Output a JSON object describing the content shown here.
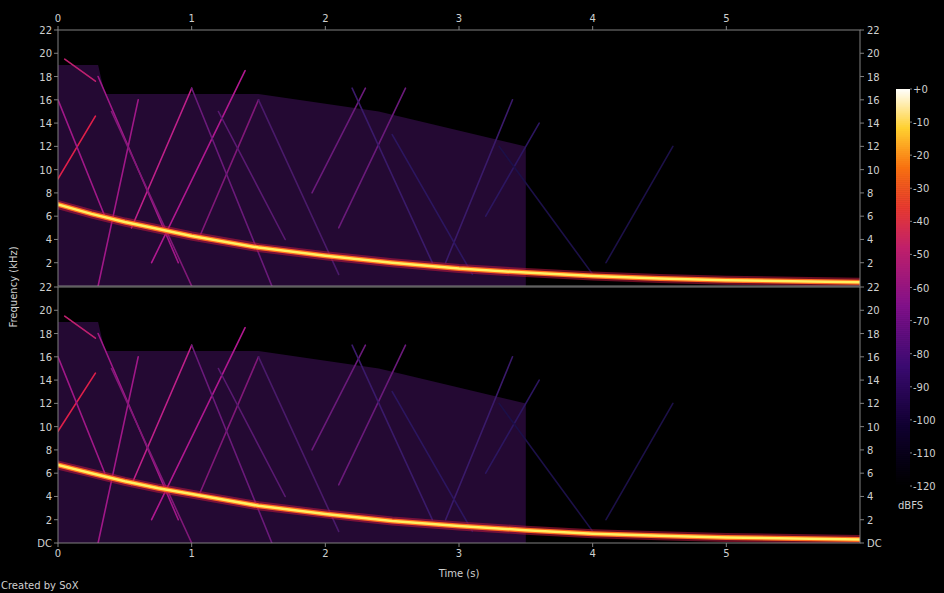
{
  "chart_data": [
    {
      "type": "spectrogram",
      "xlim": [
        0,
        6
      ],
      "xticks": [
        0,
        1,
        2,
        3,
        4,
        5
      ],
      "ylim": [
        0,
        22
      ],
      "yticks": [
        2,
        4,
        6,
        8,
        10,
        12,
        14,
        16,
        18,
        20,
        22
      ],
      "grid": false,
      "ylabel": "Frequency (kHz)",
      "colorbar": {
        "range": [
          -120,
          0
        ],
        "label": "dBFS",
        "ticks": [
          {
            "value": 0,
            "label": "+0"
          },
          -10,
          -20,
          -30,
          -40,
          -50,
          -60,
          -70,
          -80,
          -90,
          -100,
          -110,
          -120
        ]
      },
      "series": [
        {
          "type": "area",
          "color": "#2a0b3c",
          "x": [
            0,
            0.3,
            0.35,
            1.5,
            2.4,
            3.5
          ],
          "values": [
            19,
            19,
            16.5,
            16.5,
            15,
            12
          ]
        },
        {
          "type": "line",
          "color": "#e0204a",
          "x": [
            0,
            0.28
          ],
          "values": [
            9.2,
            14.6
          ]
        },
        {
          "type": "line",
          "color": "#c0208a",
          "x": [
            0.55,
            1.0
          ],
          "values": [
            5,
            17
          ]
        },
        {
          "type": "line",
          "color": "#b01890",
          "x": [
            0.7,
            1.4
          ],
          "values": [
            2,
            18.5
          ]
        },
        {
          "type": "line",
          "color": "#a01888",
          "x": [
            0.3,
            0.6
          ],
          "values": [
            0,
            16
          ]
        },
        {
          "type": "line",
          "color": "#801878",
          "x": [
            1.05,
            1.5
          ],
          "values": [
            4,
            16
          ]
        },
        {
          "type": "line",
          "color": "#6a1a7a",
          "x": [
            1.9,
            2.3
          ],
          "values": [
            8,
            17
          ]
        },
        {
          "type": "line",
          "color": "#6a1a7a",
          "x": [
            2.1,
            2.6
          ],
          "values": [
            5,
            17
          ]
        },
        {
          "type": "line",
          "color": "#3a1a6a",
          "x": [
            2.9,
            3.4
          ],
          "values": [
            2,
            16
          ]
        },
        {
          "type": "line",
          "color": "#2c1660",
          "x": [
            3.2,
            3.6
          ],
          "values": [
            6,
            14
          ]
        },
        {
          "type": "line",
          "color": "#1c1048",
          "x": [
            4.1,
            4.6
          ],
          "values": [
            2,
            12
          ]
        },
        {
          "type": "line",
          "color": "#c02070",
          "x": [
            0.05,
            0.28
          ],
          "values": [
            19.5,
            17.6
          ]
        },
        {
          "type": "line",
          "color": "#a01888",
          "x": [
            0.3,
            0.9
          ],
          "values": [
            18,
            2
          ]
        },
        {
          "type": "line",
          "color": "#801878",
          "x": [
            0.4,
            1.0
          ],
          "values": [
            15,
            0
          ]
        },
        {
          "type": "line",
          "color": "#6a1a7a",
          "x": [
            1.0,
            1.6
          ],
          "values": [
            17,
            0
          ]
        },
        {
          "type": "line",
          "color": "#4a1a6a",
          "x": [
            1.5,
            2.1
          ],
          "values": [
            16,
            1
          ]
        },
        {
          "type": "line",
          "color": "#3a1a6a",
          "x": [
            2.2,
            2.8
          ],
          "values": [
            17,
            2
          ]
        },
        {
          "type": "line",
          "color": "#a01888",
          "x": [
            0,
            0.35
          ],
          "values": [
            16,
            6
          ]
        },
        {
          "type": "line",
          "color": "#2c1660",
          "x": [
            2.5,
            3.1
          ],
          "values": [
            13,
            1
          ]
        },
        {
          "type": "line",
          "color": "#1c1048",
          "x": [
            3.3,
            4.0
          ],
          "values": [
            12,
            1
          ]
        },
        {
          "type": "line",
          "color": "#5a1a72",
          "x": [
            1.2,
            1.7
          ],
          "values": [
            15,
            4
          ]
        },
        {
          "type": "line",
          "color": "#fff060",
          "x": [
            0,
            0.25,
            0.5,
            0.75,
            1,
            1.5,
            2,
            2.5,
            3,
            3.5,
            4,
            4.5,
            5,
            5.5,
            6
          ],
          "values": [
            7.0,
            6.2,
            5.5,
            4.9,
            4.3,
            3.3,
            2.6,
            2.0,
            1.5,
            1.15,
            0.85,
            0.65,
            0.5,
            0.4,
            0.32
          ]
        }
      ]
    },
    {
      "type": "spectrogram",
      "xlim": [
        0,
        6
      ],
      "xticks": [
        0,
        1,
        2,
        3,
        4,
        5
      ],
      "ylim": [
        0,
        22
      ],
      "yticks": [
        {
          "value": 0,
          "label": "DC"
        },
        2,
        4,
        6,
        8,
        10,
        12,
        14,
        16,
        18,
        20,
        22
      ],
      "grid": false,
      "xlabel": "Time (s)",
      "annotation": "Created by SoX",
      "series": [
        {
          "type": "area",
          "color": "#2a0b3c",
          "x": [
            0,
            0.3,
            0.35,
            1.5,
            2.4,
            3.5
          ],
          "values": [
            19,
            19,
            16.5,
            16.5,
            15,
            12
          ]
        },
        {
          "type": "line",
          "color": "#e0204a",
          "x": [
            0,
            0.28
          ],
          "values": [
            9.6,
            14.6
          ]
        },
        {
          "type": "line",
          "color": "#c0208a",
          "x": [
            0.55,
            1.0
          ],
          "values": [
            5,
            17
          ]
        },
        {
          "type": "line",
          "color": "#b01890",
          "x": [
            0.7,
            1.4
          ],
          "values": [
            2,
            18.5
          ]
        },
        {
          "type": "line",
          "color": "#a01888",
          "x": [
            0.3,
            0.6
          ],
          "values": [
            0,
            16
          ]
        },
        {
          "type": "line",
          "color": "#801878",
          "x": [
            1.05,
            1.5
          ],
          "values": [
            4,
            16
          ]
        },
        {
          "type": "line",
          "color": "#6a1a7a",
          "x": [
            1.9,
            2.3
          ],
          "values": [
            8,
            17
          ]
        },
        {
          "type": "line",
          "color": "#6a1a7a",
          "x": [
            2.1,
            2.6
          ],
          "values": [
            5,
            17
          ]
        },
        {
          "type": "line",
          "color": "#3a1a6a",
          "x": [
            2.9,
            3.4
          ],
          "values": [
            2,
            16
          ]
        },
        {
          "type": "line",
          "color": "#2c1660",
          "x": [
            3.2,
            3.6
          ],
          "values": [
            6,
            14
          ]
        },
        {
          "type": "line",
          "color": "#1c1048",
          "x": [
            4.1,
            4.6
          ],
          "values": [
            2,
            12
          ]
        },
        {
          "type": "line",
          "color": "#c02070",
          "x": [
            0.05,
            0.28
          ],
          "values": [
            19.5,
            17.6
          ]
        },
        {
          "type": "line",
          "color": "#a01888",
          "x": [
            0.3,
            0.9
          ],
          "values": [
            18,
            2
          ]
        },
        {
          "type": "line",
          "color": "#801878",
          "x": [
            0.4,
            1.0
          ],
          "values": [
            15,
            0
          ]
        },
        {
          "type": "line",
          "color": "#6a1a7a",
          "x": [
            1.0,
            1.6
          ],
          "values": [
            17,
            0
          ]
        },
        {
          "type": "line",
          "color": "#4a1a6a",
          "x": [
            1.5,
            2.1
          ],
          "values": [
            16,
            1
          ]
        },
        {
          "type": "line",
          "color": "#3a1a6a",
          "x": [
            2.2,
            2.8
          ],
          "values": [
            17,
            2
          ]
        },
        {
          "type": "line",
          "color": "#a01888",
          "x": [
            0,
            0.35
          ],
          "values": [
            16,
            6
          ]
        },
        {
          "type": "line",
          "color": "#2c1660",
          "x": [
            2.5,
            3.1
          ],
          "values": [
            13,
            1
          ]
        },
        {
          "type": "line",
          "color": "#1c1048",
          "x": [
            3.3,
            4.0
          ],
          "values": [
            12,
            1
          ]
        },
        {
          "type": "line",
          "color": "#5a1a72",
          "x": [
            1.2,
            1.7
          ],
          "values": [
            15,
            4
          ]
        },
        {
          "type": "line",
          "color": "#fff060",
          "x": [
            0,
            0.25,
            0.5,
            0.75,
            1,
            1.5,
            2,
            2.5,
            3,
            3.5,
            4,
            4.5,
            5,
            5.5,
            6
          ],
          "values": [
            6.7,
            6.0,
            5.3,
            4.7,
            4.2,
            3.2,
            2.5,
            1.9,
            1.45,
            1.1,
            0.8,
            0.62,
            0.48,
            0.38,
            0.3
          ]
        }
      ]
    }
  ]
}
